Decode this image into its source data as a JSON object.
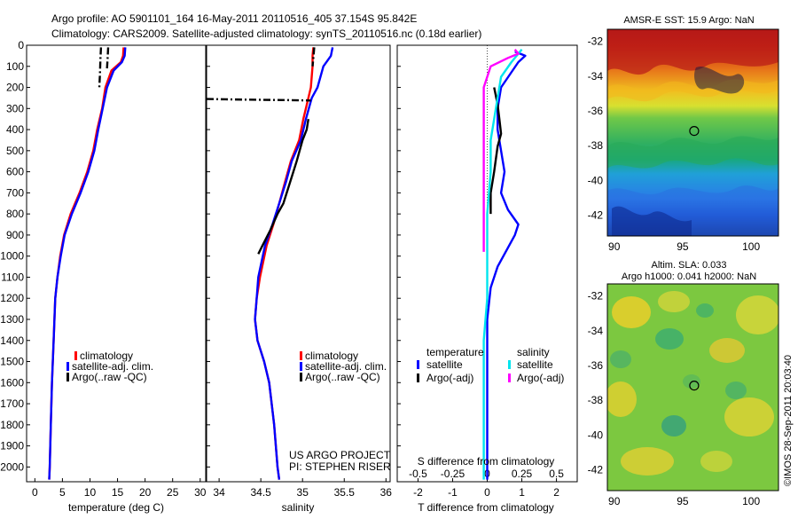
{
  "header": {
    "line1": "Argo profile: AO 5901101_164 16-May-2011 20110516_405 37.154S 95.842E",
    "line2": "Climatology: CARS2009. Satellite-adjusted climatology: synTS_20110516.nc (0.18d earlier)"
  },
  "credits": {
    "project": "US ARGO PROJECT",
    "pi": "PI: STEPHEN RISER",
    "stamp": "©IMOS 28-Sep-2011 20:03:40"
  },
  "colors": {
    "climatology": "#ff0000",
    "satellite": "#0000ff",
    "argo": "#000000",
    "satellite_s": "#00e5ee",
    "argo_s": "#ff00ff"
  },
  "chart_data": [
    {
      "id": "temperature",
      "type": "line",
      "xlabel": "temperature (deg C)",
      "ylabel": "",
      "xlim": [
        -1.5,
        31
      ],
      "ylim": [
        2070,
        0
      ],
      "xticks": [
        0,
        5,
        10,
        15,
        20,
        25,
        30
      ],
      "yticks": [
        0,
        100,
        200,
        300,
        400,
        500,
        600,
        700,
        800,
        900,
        1000,
        1100,
        1200,
        1300,
        1400,
        1500,
        1600,
        1700,
        1800,
        1900,
        2000
      ],
      "legend": [
        "climatology",
        "satellite-adj. clim.",
        "Argo(..raw -QC)"
      ],
      "series": [
        {
          "name": "climatology",
          "color": "#ff0000",
          "style": "solid",
          "x": [
            16.1,
            16.0,
            15.6,
            13.9,
            12.8,
            12.2,
            11.3,
            10.6,
            9.5,
            8.1,
            6.5,
            5.3,
            4.6,
            4.1,
            3.7,
            3.4,
            3.1,
            2.9,
            2.7,
            2.6
          ],
          "y": [
            10,
            50,
            80,
            120,
            200,
            300,
            400,
            500,
            600,
            700,
            800,
            900,
            1000,
            1100,
            1200,
            1400,
            1600,
            1800,
            2000,
            2060
          ]
        },
        {
          "name": "satellite-adj. clim.",
          "color": "#0000ff",
          "style": "solid",
          "x": [
            16.4,
            16.3,
            15.8,
            14.3,
            13.1,
            12.3,
            11.5,
            10.8,
            9.7,
            8.3,
            6.7,
            5.4,
            4.7,
            4.1,
            3.7,
            3.4,
            3.1,
            2.9,
            2.7,
            2.6
          ],
          "y": [
            10,
            50,
            80,
            120,
            200,
            300,
            400,
            500,
            600,
            700,
            800,
            900,
            1000,
            1100,
            1200,
            1400,
            1600,
            1800,
            2000,
            2060
          ]
        },
        {
          "name": "Argo(..raw -QC)",
          "color": "#000000",
          "style": "dashdot",
          "x": [
            12.0,
            11.9,
            11.8,
            11.7
          ],
          "y": [
            10,
            60,
            140,
            200
          ]
        },
        {
          "name": "Argo(..raw -QC)",
          "color": "#000000",
          "style": "dashdot",
          "x": [
            13.3,
            13.2,
            13.1
          ],
          "y": [
            10,
            60,
            110
          ]
        }
      ]
    },
    {
      "id": "salinity",
      "type": "line",
      "xlabel": "salinity",
      "ylabel": "",
      "xlim": [
        33.85,
        36.05
      ],
      "ylim": [
        2070,
        0
      ],
      "xticks": [
        34,
        34.5,
        35,
        35.5,
        36
      ],
      "yticks": [],
      "legend": [
        "climatology",
        "satellite-adj. clim.",
        "Argo(..raw -QC)"
      ],
      "series": [
        {
          "name": "climatology",
          "color": "#ff0000",
          "style": "solid",
          "x": [
            35.13,
            35.12,
            35.12,
            35.1,
            35.07,
            35.01,
            34.96,
            34.86,
            34.79,
            34.72,
            34.65,
            34.57,
            34.49,
            34.45,
            34.43,
            34.46,
            34.54,
            34.6,
            34.66,
            34.7,
            34.72
          ],
          "y": [
            10,
            50,
            100,
            200,
            250,
            350,
            450,
            550,
            650,
            750,
            850,
            950,
            1100,
            1200,
            1300,
            1400,
            1500,
            1600,
            1800,
            2000,
            2060
          ]
        },
        {
          "name": "satellite-adj. clim.",
          "color": "#0000ff",
          "style": "solid",
          "x": [
            35.36,
            35.34,
            35.25,
            35.18,
            35.11,
            35.04,
            34.98,
            34.87,
            34.8,
            34.72,
            34.64,
            34.55,
            34.47,
            34.45,
            34.43,
            34.46,
            34.54,
            34.6,
            34.66,
            34.7,
            34.72
          ],
          "y": [
            10,
            50,
            100,
            200,
            250,
            350,
            450,
            550,
            650,
            750,
            850,
            950,
            1100,
            1200,
            1300,
            1400,
            1500,
            1600,
            1800,
            2000,
            2060
          ]
        },
        {
          "name": "Argo(..raw -QC)",
          "color": "#000000",
          "style": "solid",
          "x": [
            35.07,
            35.05,
            35.0,
            34.93,
            34.85,
            34.77,
            34.7,
            34.61,
            34.52,
            34.47
          ],
          "y": [
            350,
            400,
            450,
            550,
            650,
            750,
            800,
            880,
            950,
            990
          ]
        },
        {
          "name": "Argo(..raw -QC)",
          "color": "#000000",
          "style": "dashdot",
          "x": [
            33.85,
            34.3,
            34.8,
            35.1
          ],
          "y": [
            255,
            258,
            260,
            262
          ]
        },
        {
          "name": "Argo(..raw -QC)",
          "color": "#000000",
          "style": "dashdot",
          "x": [
            35.14,
            35.13,
            35.12
          ],
          "y": [
            10,
            60,
            100
          ]
        }
      ]
    },
    {
      "id": "difference",
      "type": "line",
      "xlabel": "T difference from climatology",
      "xlabel_top": "S difference from climatology",
      "ylabel": "",
      "xlim": [
        -2.6,
        2.6
      ],
      "ylim": [
        2070,
        0
      ],
      "xticks": [
        -2,
        -1,
        0,
        1,
        2
      ],
      "xticks_top": [
        "-0.5",
        "-0.25",
        "0",
        "0.25",
        "0.5"
      ],
      "yticks": [],
      "legend_title_t": "temperature",
      "legend_title_s": "salinity",
      "legend": [
        "satellite",
        "Argo(-adj)",
        "satellite",
        "Argo(-adj)"
      ],
      "series": [
        {
          "name": "satellite",
          "group": "temperature",
          "color": "#0000ff",
          "style": "solid",
          "x": [
            0.8,
            1.1,
            0.9,
            0.4,
            0.3,
            0.3,
            0.4,
            0.5,
            0.4,
            0.6,
            0.9,
            0.8,
            0.6,
            0.3,
            0.1,
            0.0,
            0.0,
            0.0,
            0.0,
            0.0
          ],
          "y": [
            30,
            50,
            80,
            200,
            300,
            400,
            500,
            600,
            700,
            780,
            850,
            900,
            960,
            1050,
            1150,
            1300,
            1500,
            1700,
            1900,
            2060
          ]
        },
        {
          "name": "Argo(-adj)",
          "group": "temperature",
          "color": "#000000",
          "style": "solid",
          "x": [
            0.2,
            0.3,
            0.35,
            0.4,
            0.3,
            0.2,
            0.1,
            0.1
          ],
          "y": [
            200,
            280,
            350,
            420,
            480,
            600,
            700,
            800
          ]
        },
        {
          "name": "satellite",
          "group": "salinity",
          "color": "#00e5ee",
          "style": "solid",
          "x": [
            1.0,
            0.8,
            0.7,
            0.4,
            0.3,
            0.2,
            0.1,
            0.1,
            0.0,
            0.0,
            0.0,
            -0.1,
            -0.1,
            -0.1,
            -0.1
          ],
          "y": [
            20,
            60,
            80,
            150,
            250,
            350,
            450,
            600,
            800,
            1000,
            1200,
            1400,
            1600,
            1800,
            2060
          ]
        },
        {
          "name": "Argo(-adj)",
          "group": "salinity",
          "color": "#ff00ff",
          "style": "solid",
          "x": [
            0.8,
            0.9,
            0.6,
            0.1,
            -0.1,
            -0.1,
            -0.1,
            -0.1,
            -0.1,
            -0.1,
            -0.1
          ],
          "y": [
            20,
            40,
            60,
            100,
            200,
            300,
            400,
            550,
            700,
            850,
            980
          ]
        }
      ]
    },
    {
      "id": "sst-map",
      "type": "heatmap",
      "title": "AMSR-E SST: 15.9 Argo: NaN",
      "xticks": [
        "90",
        "95",
        "100"
      ],
      "yticks": [
        "-32",
        "-34",
        "-36",
        "-38",
        "-40",
        "-42"
      ],
      "xlim": [
        89.5,
        102
      ],
      "ylim": [
        -43.2,
        -31.3
      ],
      "marker": {
        "x": 95.842,
        "y": -37.154
      }
    },
    {
      "id": "sla-map",
      "type": "heatmap",
      "title": "Altim. SLA: 0.033",
      "subtitle": "Argo h1000: 0.041 h2000: NaN",
      "xticks": [
        "90",
        "95",
        "100"
      ],
      "yticks": [
        "-32",
        "-34",
        "-36",
        "-38",
        "-40",
        "-42"
      ],
      "xlim": [
        89.5,
        102
      ],
      "ylim": [
        -43.2,
        -31.3
      ],
      "marker": {
        "x": 95.842,
        "y": -37.154
      }
    }
  ]
}
